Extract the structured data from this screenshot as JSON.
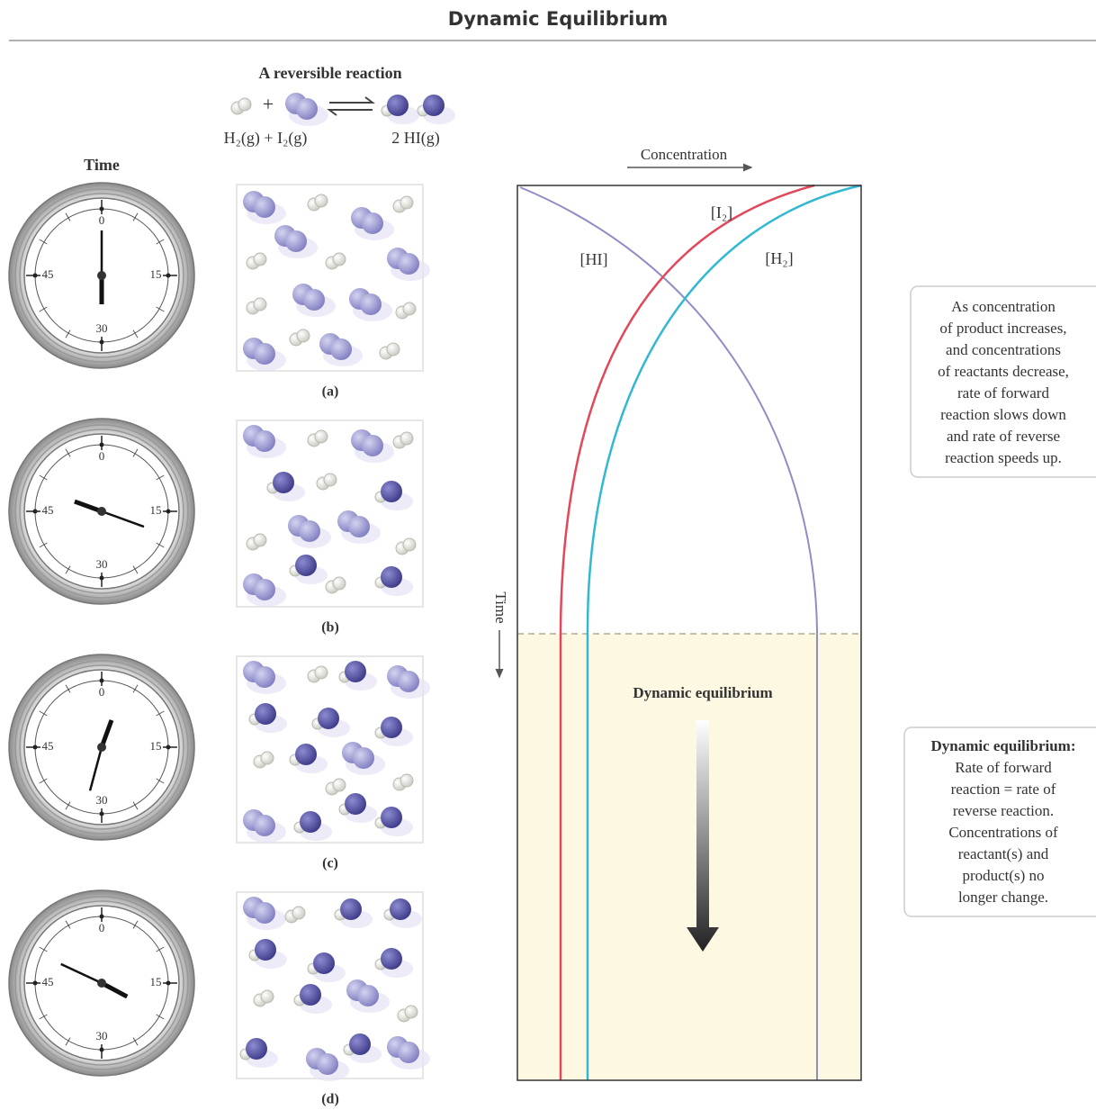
{
  "header": {
    "title": "Dynamic Equilibrium"
  },
  "reaction": {
    "title": "A reversible reaction",
    "reactants": "H₂(g) + I₂(g)",
    "products": "2 HI(g)",
    "plus": "+"
  },
  "time_label": "Time",
  "clock_labels": [
    "0",
    "15",
    "30",
    "45"
  ],
  "panels": [
    {
      "label": "(a)"
    },
    {
      "label": "(b)"
    },
    {
      "label": "(c)"
    },
    {
      "label": "(d)"
    }
  ],
  "graph": {
    "x_label": "Concentration",
    "y_label": "Time",
    "curves": [
      {
        "label": "[I₂]"
      },
      {
        "label": "[HI]"
      },
      {
        "label": "[H₂]"
      }
    ],
    "region_label": "Dynamic equilibrium"
  },
  "callouts": [
    {
      "lines": [
        "As concentration",
        "of product increases,",
        "and concentrations",
        "of reactants decrease,",
        "rate of forward",
        "reaction slows down",
        "and rate of reverse",
        "reaction speeds up."
      ]
    },
    {
      "heading": "Dynamic equilibrium:",
      "lines": [
        "Rate of forward",
        "reaction = rate of",
        "reverse reaction.",
        "Concentrations of",
        "reactant(s) and",
        "product(s) no",
        "longer change."
      ]
    }
  ]
}
